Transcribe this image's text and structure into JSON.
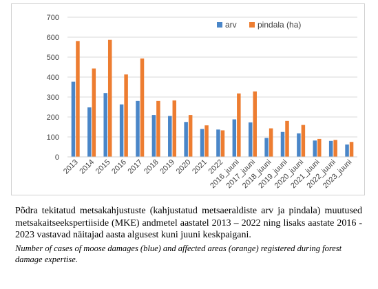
{
  "chart_data": {
    "type": "bar",
    "categories": [
      "2013",
      "2014",
      "2015",
      "2016",
      "2017",
      "2018",
      "2019",
      "2020",
      "2021",
      "2022",
      "2016_juuni",
      "2017_juuni",
      "2018_juuni",
      "2019_juuni",
      "2020_juuni",
      "2021_juuni",
      "2022_juuni",
      "2023_juuni"
    ],
    "series": [
      {
        "name": "arv",
        "color": "#4a86c8",
        "values": [
          377,
          248,
          320,
          263,
          280,
          210,
          205,
          175,
          140,
          137,
          188,
          173,
          95,
          125,
          118,
          82,
          80,
          62
        ]
      },
      {
        "name": "pindala (ha)",
        "color": "#ed7d31",
        "values": [
          580,
          443,
          587,
          413,
          493,
          280,
          283,
          210,
          158,
          133,
          318,
          328,
          143,
          180,
          160,
          90,
          85,
          75
        ]
      }
    ],
    "title": "",
    "xlabel": "",
    "ylabel": "",
    "ylim": [
      0,
      700
    ],
    "yticks": [
      0,
      100,
      200,
      300,
      400,
      500,
      600,
      700
    ],
    "grid": true,
    "legend_position": "top-right"
  },
  "caption": {
    "estonian": "Põdra tekitatud metsakahjustuste (kahjustatud metsaeraldiste arv ja pindala) muutused metsakaitseekspertiiside (MKE) andmetel aastatel 2013 – 2022 ning lisaks aastate 2016 - 2023 vastavad näitajad aasta algusest kuni juuni keskpaigani.",
    "english": "Number of cases of moose damages (blue) and affected areas (orange) registered during forest damage expertise."
  }
}
